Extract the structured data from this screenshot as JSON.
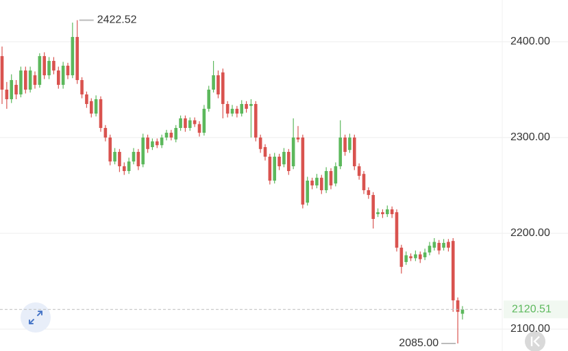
{
  "chart_data": {
    "type": "candlestick",
    "up_color": "#5cb85c",
    "down_color": "#d9534f",
    "ylim": [
      2077.1,
      2443.6
    ],
    "yticks": [
      {
        "value": 2400,
        "label": "2400.00"
      },
      {
        "value": 2300,
        "label": "2300.00"
      },
      {
        "value": 2200,
        "label": "2200.00"
      },
      {
        "value": 2100,
        "label": "2100.00"
      }
    ],
    "grid": true,
    "max_label": 2422.52,
    "min_label": {
      "value": 2085,
      "label": "2085.00"
    },
    "last_price": 2120.51,
    "ohlc": [
      [
        2385,
        2395,
        2335,
        2350
      ],
      [
        2350,
        2358,
        2330,
        2340
      ],
      [
        2340,
        2366,
        2336,
        2360
      ],
      [
        2355,
        2360,
        2340,
        2345
      ],
      [
        2345,
        2374,
        2342,
        2370
      ],
      [
        2370,
        2374,
        2346,
        2350
      ],
      [
        2350,
        2374,
        2347,
        2370
      ],
      [
        2365,
        2369,
        2351,
        2355
      ],
      [
        2355,
        2388,
        2352,
        2385
      ],
      [
        2385,
        2389,
        2361,
        2365
      ],
      [
        2365,
        2384,
        2361,
        2380
      ],
      [
        2380,
        2384,
        2366,
        2370
      ],
      [
        2370,
        2374,
        2351,
        2355
      ],
      [
        2355,
        2379,
        2351,
        2375
      ],
      [
        2375,
        2378,
        2361,
        2365
      ],
      [
        2365,
        2420,
        2362,
        2405
      ],
      [
        2405,
        2422.52,
        2356,
        2360
      ],
      [
        2360,
        2363,
        2341,
        2345
      ],
      [
        2345,
        2348,
        2331,
        2335
      ],
      [
        2338,
        2341,
        2321,
        2325
      ],
      [
        2325,
        2344,
        2322,
        2340
      ],
      [
        2340,
        2343,
        2306,
        2310
      ],
      [
        2310,
        2313,
        2296,
        2300
      ],
      [
        2300,
        2303,
        2271,
        2275
      ],
      [
        2275,
        2289,
        2272,
        2285
      ],
      [
        2285,
        2288,
        2264,
        2270
      ],
      [
        2270,
        2274,
        2261,
        2265
      ],
      [
        2265,
        2279,
        2262,
        2275
      ],
      [
        2275,
        2289,
        2272,
        2285
      ],
      [
        2285,
        2288,
        2266,
        2270
      ],
      [
        2272,
        2304,
        2269,
        2300
      ],
      [
        2300,
        2303,
        2284,
        2288
      ],
      [
        2290,
        2299,
        2287,
        2296
      ],
      [
        2296,
        2299,
        2289,
        2292
      ],
      [
        2292,
        2303,
        2289,
        2300
      ],
      [
        2300,
        2308,
        2297,
        2305
      ],
      [
        2305,
        2308,
        2297,
        2300
      ],
      [
        2298,
        2313,
        2295,
        2310
      ],
      [
        2310,
        2323,
        2307,
        2320
      ],
      [
        2320,
        2323,
        2306,
        2310
      ],
      [
        2310,
        2321,
        2307,
        2318
      ],
      [
        2318,
        2321,
        2311,
        2314
      ],
      [
        2314,
        2317,
        2301,
        2305
      ],
      [
        2305,
        2334,
        2302,
        2330
      ],
      [
        2330,
        2354,
        2327,
        2350
      ],
      [
        2350,
        2380,
        2347,
        2365
      ],
      [
        2365,
        2370,
        2341,
        2345
      ],
      [
        2368,
        2372,
        2320,
        2335
      ],
      [
        2335,
        2338,
        2321,
        2325
      ],
      [
        2325,
        2334,
        2322,
        2330
      ],
      [
        2330,
        2333,
        2321,
        2325
      ],
      [
        2325,
        2339,
        2322,
        2335
      ],
      [
        2335,
        2338,
        2326,
        2330
      ],
      [
        2333,
        2340,
        2300,
        2335
      ],
      [
        2335,
        2338,
        2296,
        2300
      ],
      [
        2300,
        2303,
        2284,
        2288
      ],
      [
        2290,
        2293,
        2276,
        2280
      ],
      [
        2280,
        2283,
        2251,
        2255
      ],
      [
        2255,
        2284,
        2252,
        2280
      ],
      [
        2280,
        2283,
        2266,
        2270
      ],
      [
        2272,
        2289,
        2269,
        2285
      ],
      [
        2285,
        2288,
        2261,
        2265
      ],
      [
        2270,
        2320,
        2267,
        2300
      ],
      [
        2300,
        2312,
        2295,
        2298
      ],
      [
        2300,
        2303,
        2226,
        2230
      ],
      [
        2232,
        2259,
        2229,
        2255
      ],
      [
        2255,
        2258,
        2246,
        2250
      ],
      [
        2250,
        2262,
        2247,
        2258
      ],
      [
        2258,
        2261,
        2241,
        2245
      ],
      [
        2245,
        2269,
        2242,
        2265
      ],
      [
        2265,
        2268,
        2246,
        2250
      ],
      [
        2252,
        2274,
        2249,
        2270
      ],
      [
        2270,
        2318,
        2267,
        2300
      ],
      [
        2300,
        2303,
        2281,
        2285
      ],
      [
        2287,
        2304,
        2284,
        2300
      ],
      [
        2300,
        2303,
        2266,
        2270
      ],
      [
        2270,
        2273,
        2256,
        2260
      ],
      [
        2262,
        2265,
        2241,
        2245
      ],
      [
        2245,
        2248,
        2236,
        2240
      ],
      [
        2240,
        2243,
        2205,
        2215
      ],
      [
        2220,
        2226,
        2217,
        2222
      ],
      [
        2222,
        2225,
        2216,
        2220
      ],
      [
        2220,
        2229,
        2217,
        2225
      ],
      [
        2225,
        2228,
        2216,
        2220
      ],
      [
        2222,
        2225,
        2181,
        2185
      ],
      [
        2185,
        2188,
        2158,
        2165
      ],
      [
        2170,
        2181,
        2167,
        2177
      ],
      [
        2176,
        2179,
        2171,
        2174
      ],
      [
        2174,
        2182,
        2171,
        2178
      ],
      [
        2178,
        2181,
        2169,
        2173
      ],
      [
        2175,
        2184,
        2172,
        2180
      ],
      [
        2180,
        2191,
        2177,
        2187
      ],
      [
        2185,
        2195,
        2182,
        2191
      ],
      [
        2190,
        2193,
        2178,
        2182
      ],
      [
        2185,
        2194,
        2182,
        2190
      ],
      [
        2191,
        2194,
        2181,
        2185
      ],
      [
        2192,
        2195,
        2118,
        2130
      ],
      [
        2130,
        2133,
        2085,
        2118
      ],
      [
        2116,
        2124,
        2110,
        2120.51
      ]
    ]
  }
}
